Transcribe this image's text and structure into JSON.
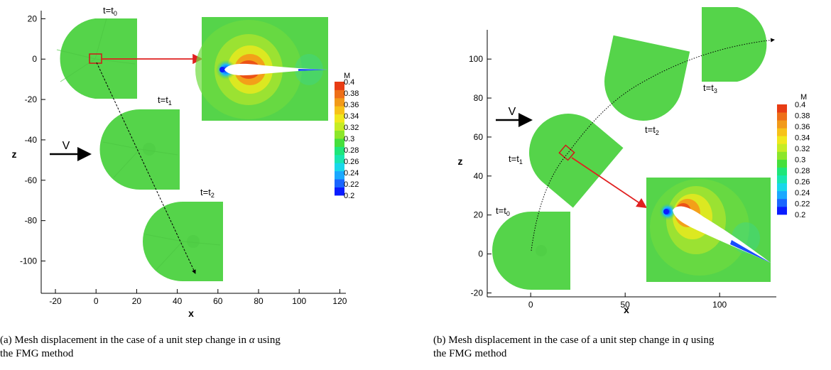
{
  "captions": {
    "a_line1_prefix": "(a) Mesh displacement in the case of a unit step change in ",
    "a_symbol": "α",
    "a_line1_suffix": " using",
    "a_line2": "the FMG method",
    "b_line1_prefix": "(b) Mesh displacement in the case of a unit step change in ",
    "b_symbol": "q",
    "b_line1_suffix": " using",
    "b_line2": "the FMG method"
  },
  "colors": {
    "mesh_green": "#55d44a",
    "arrow_red": "#e02020",
    "legend": [
      "#0a1cff",
      "#1a66ff",
      "#1aa8ff",
      "#19d7ea",
      "#19e6b0",
      "#1fe67a",
      "#46df3c",
      "#8ce62a",
      "#c6ec24",
      "#f0e81d",
      "#f7c219",
      "#f29a19",
      "#ee6f18",
      "#e83c14"
    ]
  },
  "chart_data": [
    {
      "type": "figure",
      "panel": "a",
      "xlabel": "x",
      "ylabel": "z",
      "xlim": [
        -27,
        123
      ],
      "ylim": [
        -116,
        24
      ],
      "xticks": [
        "-20",
        "0",
        "20",
        "40",
        "60",
        "80",
        "100",
        "120"
      ],
      "yticks": [
        "20",
        "0",
        "-20",
        "-40",
        "-60",
        "-80",
        "-100"
      ],
      "time_labels": [
        {
          "base": "t=t",
          "sub": "0"
        },
        {
          "base": "t=t",
          "sub": "1"
        },
        {
          "base": "t=t",
          "sub": "2"
        }
      ],
      "velocity_label": "V",
      "path_points": [
        [
          0,
          0
        ],
        [
          50,
          -106
        ]
      ],
      "legend_title": "M",
      "legend_values": [
        "0.4",
        "0.38",
        "0.36",
        "0.34",
        "0.32",
        "0.3",
        "0.28",
        "0.26",
        "0.24",
        "0.22",
        "0.2"
      ]
    },
    {
      "type": "figure",
      "panel": "b",
      "xlabel": "x",
      "ylabel": "z",
      "xlim": [
        -23,
        130
      ],
      "ylim": [
        -22,
        115
      ],
      "xticks": [
        "0",
        "50",
        "100"
      ],
      "yticks": [
        "100",
        "80",
        "60",
        "40",
        "20",
        "0",
        "-20"
      ],
      "time_labels": [
        {
          "base": "t=t",
          "sub": "0"
        },
        {
          "base": "t=t",
          "sub": "1"
        },
        {
          "base": "t=t",
          "sub": "2"
        },
        {
          "base": "t=t",
          "sub": "3"
        }
      ],
      "velocity_label": "V",
      "path_points": [
        [
          0,
          0
        ],
        [
          18,
          50
        ],
        [
          60,
          88
        ],
        [
          128,
          110
        ]
      ],
      "legend_title": "M",
      "legend_values": [
        "0.4",
        "0.38",
        "0.36",
        "0.34",
        "0.32",
        "0.3",
        "0.28",
        "0.26",
        "0.24",
        "0.22",
        "0.2"
      ]
    }
  ]
}
